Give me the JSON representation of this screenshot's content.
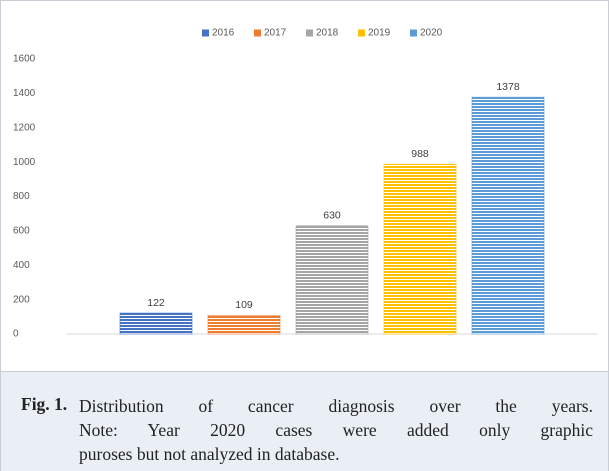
{
  "chart_data": {
    "type": "bar",
    "categories": [
      null
    ],
    "series": [
      {
        "name": "2016",
        "color": "#4472c4",
        "values": [
          122
        ]
      },
      {
        "name": "2017",
        "color": "#ed7d31",
        "values": [
          109
        ]
      },
      {
        "name": "2018",
        "color": "#a5a5a5",
        "values": [
          630
        ]
      },
      {
        "name": "2019",
        "color": "#ffc000",
        "values": [
          988
        ]
      },
      {
        "name": "2020",
        "color": "#5b9bd5",
        "values": [
          1378
        ]
      }
    ],
    "ylim": [
      0,
      1600
    ],
    "yticks": [
      0,
      200,
      400,
      600,
      800,
      1000,
      1200,
      1400,
      1600
    ],
    "grid": false,
    "legend": "top"
  },
  "figure_caption": {
    "label": "Fig. 1.",
    "lines": [
      "Distribution of cancer diagnosis over the years.",
      "Note: Year 2020 cases were added only graphic",
      "puroses but not analyzed in database."
    ]
  }
}
